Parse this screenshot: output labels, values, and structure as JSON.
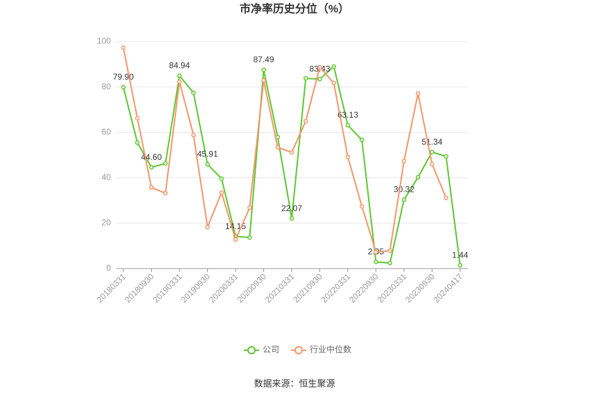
{
  "chart_data": {
    "type": "line",
    "title": "市净率历史分位（%）",
    "categories": [
      "20180331",
      null,
      "20180930",
      null,
      "20190331",
      null,
      "20190930",
      null,
      "20200331",
      null,
      "20200930",
      null,
      "20210331",
      null,
      "20210930",
      null,
      "20220331",
      null,
      "20220930",
      null,
      "20230331",
      null,
      "20230930",
      null,
      "20240417"
    ],
    "series": [
      {
        "name": "公司",
        "color": "#5cc72e",
        "values": [
          79.9,
          55.5,
          44.6,
          46.3,
          84.94,
          77.4,
          45.91,
          39.6,
          14.15,
          13.7,
          87.49,
          57.9,
          22.07,
          83.8,
          83.43,
          89.0,
          63.13,
          56.7,
          2.95,
          2.4,
          30.32,
          40.2,
          51.34,
          49.4,
          1.44
        ],
        "value_labels": [
          "79.90",
          null,
          "44.60",
          null,
          "84.94",
          null,
          "45.91",
          null,
          "14.15",
          null,
          "87.49",
          null,
          "22.07",
          null,
          "83.43",
          null,
          "63.13",
          null,
          "2.95",
          null,
          "30.32",
          null,
          "51.34",
          null,
          "1.44"
        ]
      },
      {
        "name": "行业中位数",
        "color": "#f4956a",
        "values": [
          97.3,
          66.2,
          35.7,
          33.2,
          82.3,
          58.8,
          18.3,
          33.5,
          12.8,
          26.8,
          82.9,
          53.4,
          51.2,
          64.9,
          88.7,
          81.7,
          49.1,
          27.4,
          7.3,
          7.9,
          47.3,
          77.1,
          46.0,
          31.1,
          null
        ]
      }
    ],
    "ylim": [
      0,
      100
    ],
    "yticks": [
      0,
      20,
      40,
      60,
      80,
      100
    ],
    "grid": true,
    "source": "数据来源：恒生聚源"
  }
}
